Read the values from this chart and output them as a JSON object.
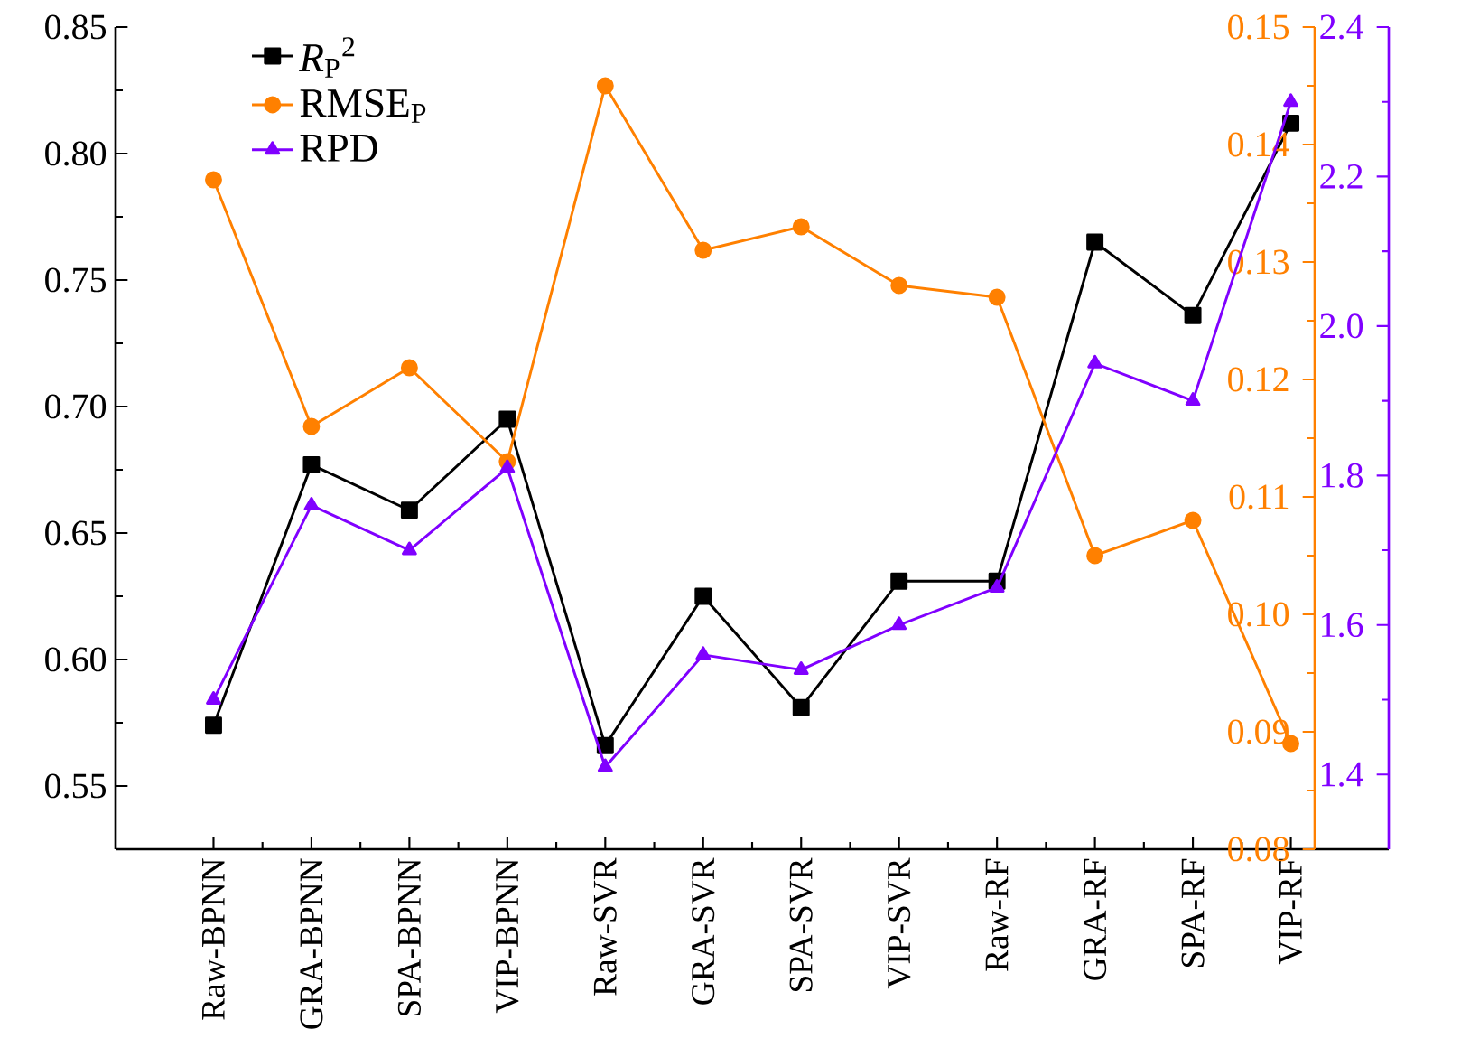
{
  "chart_data": {
    "type": "line",
    "categories": [
      "Raw-BPNN",
      "GRA-BPNN",
      "SPA-BPNN",
      "VIP-BPNN",
      "Raw-SVR",
      "GRA-SVR",
      "SPA-SVR",
      "VIP-SVR",
      "Raw-RF",
      "GRA-RF",
      "SPA-RF",
      "VIP-RF"
    ],
    "series": [
      {
        "name": "*R*$_{P}$$^{2}$",
        "color": "#000000",
        "marker": "square",
        "axis": "y",
        "values": [
          0.574,
          0.677,
          0.659,
          0.695,
          0.566,
          0.625,
          0.581,
          0.631,
          0.631,
          0.765,
          0.736,
          0.812
        ]
      },
      {
        "name": "RMSE$_{P}$",
        "color": "#ff8000",
        "marker": "circle",
        "axis": "y2",
        "values": [
          0.137,
          0.116,
          0.121,
          0.113,
          0.145,
          0.131,
          0.133,
          0.128,
          0.127,
          0.105,
          0.108,
          0.089
        ]
      },
      {
        "name": "RPD",
        "color": "#8000ff",
        "marker": "triangle",
        "axis": "y3",
        "values": [
          1.5,
          1.76,
          1.7,
          1.81,
          1.41,
          1.56,
          1.54,
          1.6,
          1.65,
          1.95,
          1.9,
          2.3
        ]
      }
    ],
    "ylim": [
      0.525,
      0.85
    ],
    "yticks": [
      {
        "value": 0.55,
        "label": "0.55"
      },
      {
        "value": 0.6,
        "label": "0.60"
      },
      {
        "value": 0.65,
        "label": "0.65"
      },
      {
        "value": 0.7,
        "label": "0.70"
      },
      {
        "value": 0.75,
        "label": "0.75"
      },
      {
        "value": 0.8,
        "label": "0.80"
      },
      {
        "value": 0.85,
        "label": "0.85"
      }
    ],
    "y2lim": [
      0.08,
      0.15
    ],
    "y2ticks": [
      {
        "value": 0.08,
        "label": "0.08"
      },
      {
        "value": 0.09,
        "label": "0.09"
      },
      {
        "value": 0.1,
        "label": "0.10"
      },
      {
        "value": 0.11,
        "label": "0.11"
      },
      {
        "value": 0.12,
        "label": "0.12"
      },
      {
        "value": 0.13,
        "label": "0.13"
      },
      {
        "value": 0.14,
        "label": "0.14"
      },
      {
        "value": 0.15,
        "label": "0.15"
      }
    ],
    "y3lim": [
      1.3,
      2.4
    ],
    "y3ticks": [
      {
        "value": 1.4,
        "label": "1.4"
      },
      {
        "value": 1.6,
        "label": "1.6"
      },
      {
        "value": 1.8,
        "label": "1.8"
      },
      {
        "value": 2.0,
        "label": "2.0"
      },
      {
        "value": 2.2,
        "label": "2.2"
      },
      {
        "value": 2.4,
        "label": "2.4"
      }
    ],
    "legend": "top left",
    "grid": false,
    "line_style": "solid"
  }
}
